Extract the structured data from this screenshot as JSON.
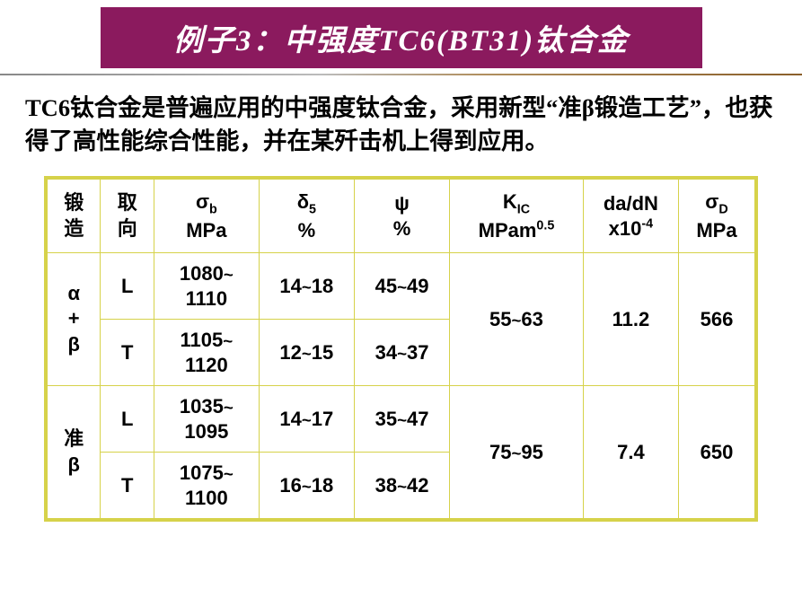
{
  "title": "例子3：中强度TC6(BT31)钛合金",
  "paragraph": "TC6钛合金是普遍应用的中强度钛合金，采用新型“准β锻造工艺”，也获得了高性能综合性能，并在某歼击机上得到应用。",
  "table": {
    "headers": {
      "forge": "锻造",
      "dir": "取向",
      "sigma_b_sym": "σ",
      "sigma_b_sub": "b",
      "sigma_b_unit": "MPa",
      "delta5_sym": "δ",
      "delta5_sub": "5",
      "delta5_unit": "%",
      "psi_sym": "ψ",
      "psi_unit": "%",
      "kic_sym": "K",
      "kic_sub": "IC",
      "kic_unit_pre": "MPam",
      "kic_unit_sup": "0.5",
      "dadn_label": "da/dN",
      "dadn_unit_pre": "x10",
      "dadn_unit_sup": "-4",
      "sigma_d_sym": "σ",
      "sigma_d_sub": "D",
      "sigma_d_unit": "MPa"
    },
    "groups": [
      {
        "forge_label": "α\n+\nβ",
        "kic": "55~63",
        "dadn": "11.2",
        "sigma_d": "566",
        "rows": [
          {
            "dir": "L",
            "sigma_b": "1080~\n1110",
            "delta5": "14~18",
            "psi": "45~49"
          },
          {
            "dir": "T",
            "sigma_b": "1105~\n1120",
            "delta5": "12~15",
            "psi": "34~37"
          }
        ]
      },
      {
        "forge_label": "准\nβ",
        "kic": "75~95",
        "dadn": "7.4",
        "sigma_d": "650",
        "rows": [
          {
            "dir": "L",
            "sigma_b": "1035~\n1095",
            "delta5": "14~17",
            "psi": "35~47"
          },
          {
            "dir": "T",
            "sigma_b": "1075~\n1100",
            "delta5": "16~18",
            "psi": "38~42"
          }
        ]
      }
    ]
  },
  "colors": {
    "title_bg": "#8b1a5e",
    "title_fg": "#ffffff",
    "border": "#d6d24a",
    "text": "#000000",
    "page_bg": "#ffffff"
  }
}
